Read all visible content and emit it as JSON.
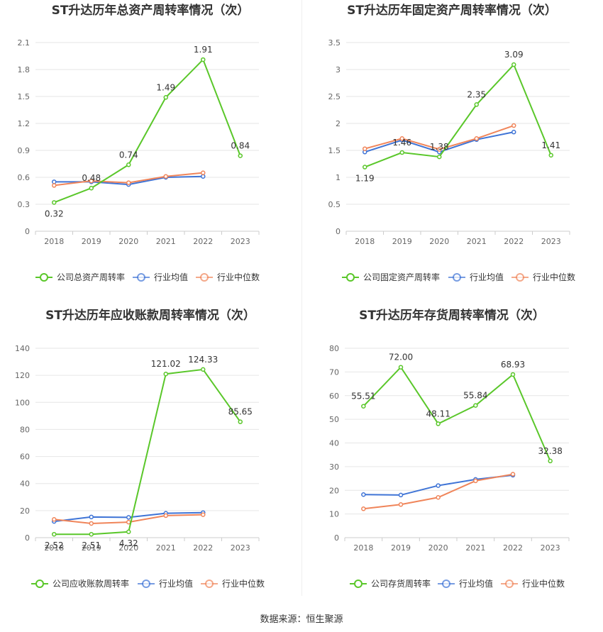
{
  "source_text": "数据来源：恒生聚源",
  "chart_data": [
    {
      "type": "line",
      "title": "ST升达历年总资产周转率情况（次）",
      "categories": [
        "2018",
        "2019",
        "2020",
        "2021",
        "2022",
        "2023"
      ],
      "ylim": [
        0,
        2.1
      ],
      "yticks": [
        "0",
        "0.3",
        "0.6",
        "0.9",
        "1.2",
        "1.5",
        "1.8",
        "2.1"
      ],
      "grid": true,
      "legend_position": "bottom",
      "series": [
        {
          "name": "公司总资产周转率",
          "color": "#5ac72a",
          "values": [
            0.32,
            0.48,
            0.74,
            1.49,
            1.91,
            0.84
          ],
          "labels": [
            "0.32",
            "0.48",
            "0.74",
            "1.49",
            "1.91",
            "0.84"
          ]
        },
        {
          "name": "行业均值",
          "color": "#3f74d6",
          "values": [
            0.55,
            0.55,
            0.52,
            0.6,
            0.61,
            null
          ]
        },
        {
          "name": "行业中位数",
          "color": "#f0855a",
          "values": [
            0.51,
            0.56,
            0.54,
            0.61,
            0.65,
            null
          ]
        }
      ]
    },
    {
      "type": "line",
      "title": "ST升达历年固定资产周转率情况（次）",
      "categories": [
        "2018",
        "2019",
        "2020",
        "2021",
        "2022",
        "2023"
      ],
      "ylim": [
        0,
        3.5
      ],
      "yticks": [
        "0",
        "0.5",
        "1",
        "1.5",
        "2",
        "2.5",
        "3",
        "3.5"
      ],
      "grid": true,
      "legend_position": "bottom",
      "series": [
        {
          "name": "公司固定资产周转率",
          "color": "#5ac72a",
          "values": [
            1.19,
            1.46,
            1.38,
            2.35,
            3.09,
            1.41
          ],
          "labels": [
            "1.19",
            "1.46",
            "1.38",
            "2.35",
            "3.09",
            "1.41"
          ]
        },
        {
          "name": "行业均值",
          "color": "#3f74d6",
          "values": [
            1.47,
            1.69,
            1.47,
            1.7,
            1.84,
            null
          ]
        },
        {
          "name": "行业中位数",
          "color": "#f0855a",
          "values": [
            1.53,
            1.72,
            1.52,
            1.72,
            1.96,
            null
          ]
        }
      ]
    },
    {
      "type": "line",
      "title": "ST升达历年应收账款周转率情况（次）",
      "categories": [
        "2018",
        "2019",
        "2020",
        "2021",
        "2022",
        "2023"
      ],
      "ylim": [
        0,
        140
      ],
      "yticks": [
        "0",
        "20",
        "40",
        "60",
        "80",
        "100",
        "120",
        "140"
      ],
      "grid": true,
      "legend_position": "bottom",
      "series": [
        {
          "name": "公司应收账款周转率",
          "color": "#5ac72a",
          "values": [
            2.52,
            2.51,
            4.32,
            121.02,
            124.33,
            85.65
          ],
          "labels": [
            "2.52",
            "2.51",
            "4.32",
            "121.02",
            "124.33",
            "85.65"
          ]
        },
        {
          "name": "行业均值",
          "color": "#3f74d6",
          "values": [
            12,
            15.3,
            15,
            18,
            18.5,
            null
          ]
        },
        {
          "name": "行业中位数",
          "color": "#f0855a",
          "values": [
            13.5,
            10.5,
            11.5,
            16.3,
            17,
            null
          ]
        }
      ]
    },
    {
      "type": "line",
      "title": "ST升达历年存货周转率情况（次）",
      "categories": [
        "2018",
        "2019",
        "2020",
        "2021",
        "2022",
        "2023"
      ],
      "ylim": [
        0,
        80
      ],
      "yticks": [
        "0",
        "10",
        "20",
        "30",
        "40",
        "50",
        "60",
        "70",
        "80"
      ],
      "grid": true,
      "legend_position": "bottom",
      "series": [
        {
          "name": "公司存货周转率",
          "color": "#5ac72a",
          "values": [
            55.51,
            72.0,
            48.11,
            55.84,
            68.93,
            32.38
          ],
          "labels": [
            "55.51",
            "72.00",
            "48.11",
            "55.84",
            "68.93",
            "32.38"
          ]
        },
        {
          "name": "行业均值",
          "color": "#3f74d6",
          "values": [
            18.2,
            18.0,
            22.0,
            24.6,
            26.4,
            null
          ]
        },
        {
          "name": "行业中位数",
          "color": "#f0855a",
          "values": [
            12.2,
            14.0,
            17.0,
            24.0,
            26.8,
            null
          ]
        }
      ]
    }
  ]
}
